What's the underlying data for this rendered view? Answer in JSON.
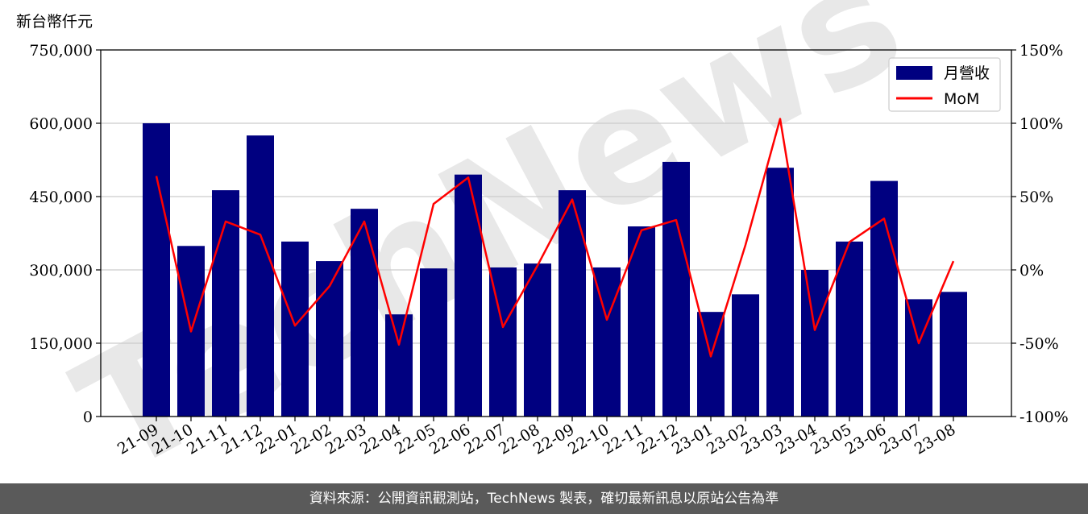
{
  "chart_data": {
    "type": "bar",
    "unit_label": "新台幣仟元",
    "categories": [
      "21-09",
      "21-10",
      "21-11",
      "21-12",
      "22-01",
      "22-02",
      "22-03",
      "22-04",
      "22-05",
      "22-06",
      "22-07",
      "22-08",
      "22-09",
      "22-10",
      "22-11",
      "22-12",
      "23-01",
      "23-02",
      "23-03",
      "23-04",
      "23-05",
      "23-06",
      "23-07",
      "23-08"
    ],
    "series": [
      {
        "name": "月營收",
        "type": "bar",
        "axis": "left",
        "color": "#000080",
        "values": [
          600000,
          349000,
          463000,
          575000,
          358000,
          318000,
          425000,
          209000,
          303000,
          495000,
          305000,
          313000,
          463000,
          305000,
          389000,
          521000,
          214000,
          250000,
          509000,
          300000,
          358000,
          482000,
          240000,
          255000
        ]
      },
      {
        "name": "MoM",
        "type": "line",
        "axis": "right",
        "color": "#ff0000",
        "values": [
          64,
          -42,
          33,
          24,
          -38,
          -11,
          33,
          -51,
          45,
          63,
          -39,
          3,
          48,
          -34,
          27,
          34,
          -59,
          17,
          103,
          -41,
          19,
          35,
          -50,
          6
        ]
      }
    ],
    "y_left": {
      "ylim": [
        0,
        750000
      ],
      "ticks": [
        0,
        150000,
        300000,
        450000,
        600000,
        750000
      ],
      "tick_labels": [
        "0",
        "150,000",
        "300,000",
        "450,000",
        "600,000",
        "750,000"
      ]
    },
    "y_right": {
      "ylim": [
        -100,
        150
      ],
      "ticks": [
        -100,
        -50,
        0,
        50,
        100,
        150
      ],
      "tick_labels": [
        "-100%",
        "-50%",
        "0%",
        "50%",
        "100%",
        "150%"
      ]
    },
    "grid": true,
    "legend": "top-right"
  },
  "watermark": "TechNews",
  "footer": {
    "source_text": "資料來源：公開資訊觀測站，TechNews 製表，確切最新訊息以原站公告為準"
  }
}
